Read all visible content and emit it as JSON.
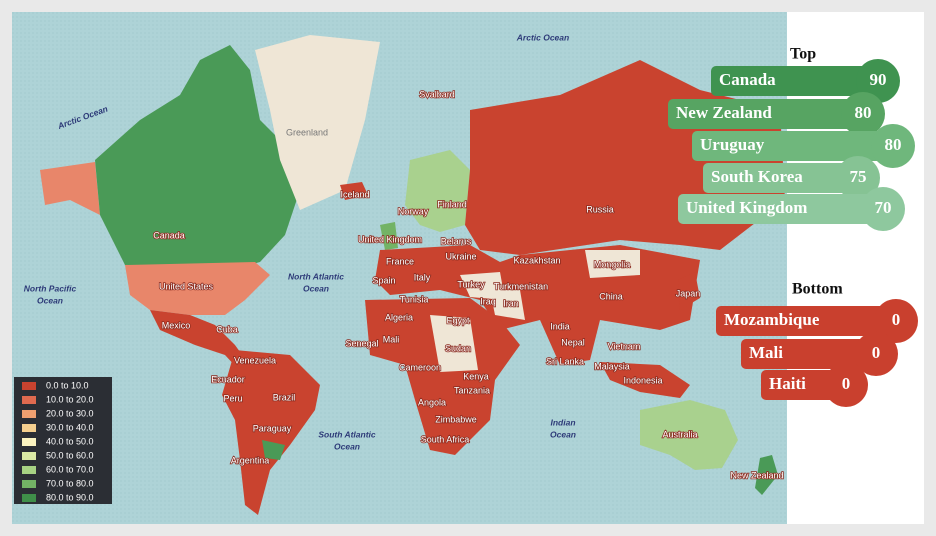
{
  "legend": {
    "items": [
      {
        "label": "0.0 to 10.0",
        "color": "#c9432f"
      },
      {
        "label": "10.0 to 20.0",
        "color": "#e06a4f"
      },
      {
        "label": "20.0 to 30.0",
        "color": "#f0a070"
      },
      {
        "label": "30.0 to 40.0",
        "color": "#f5cf8e"
      },
      {
        "label": "40.0 to 50.0",
        "color": "#fbf3c0"
      },
      {
        "label": "50.0 to 60.0",
        "color": "#dbeaa5"
      },
      {
        "label": "60.0 to 70.0",
        "color": "#a7d283"
      },
      {
        "label": "70.0 to 80.0",
        "color": "#73b365"
      },
      {
        "label": "80.0 to 90.0",
        "color": "#3f8f49"
      }
    ]
  },
  "rankings": {
    "top": {
      "title": "Top",
      "items": [
        {
          "name": "Canada",
          "value": 90,
          "color": "#3f9350"
        },
        {
          "name": "New Zealand",
          "value": 80,
          "color": "#57a462"
        },
        {
          "name": "Uruguay",
          "value": 80,
          "color": "#6fb77c"
        },
        {
          "name": "South Korea",
          "value": 75,
          "color": "#86c394"
        },
        {
          "name": "United Kingdom",
          "value": 70,
          "color": "#8ec89e"
        }
      ]
    },
    "bottom": {
      "title": "Bottom",
      "items": [
        {
          "name": "Mozambique",
          "value": 0,
          "color": "#c9402e"
        },
        {
          "name": "Mali",
          "value": 0,
          "color": "#c9402e"
        },
        {
          "name": "Haiti",
          "value": 0,
          "color": "#c9402e"
        }
      ]
    }
  },
  "map": {
    "labels": [
      "Greenland",
      "Iceland",
      "Svalbard",
      "Norway",
      "Finland",
      "United Kingdom",
      "Belarus",
      "Ukraine",
      "France",
      "Spain",
      "Italy",
      "Kazakhstan",
      "Russia",
      "Mongolia",
      "China",
      "Japan",
      "Turkmenistan",
      "Turkey",
      "Iraq",
      "Iran",
      "Tunisia",
      "Algeria",
      "Egypt",
      "Mali",
      "Senegal",
      "Sudan",
      "Cameroon",
      "Kenya",
      "Tanzania",
      "Angola",
      "Zimbabwe",
      "South Africa",
      "Nepal",
      "India",
      "Sri Lanka",
      "Vietnam",
      "Malaysia",
      "Indonesia",
      "Australia",
      "New Zealand",
      "Canada",
      "United States",
      "Mexico",
      "Cuba",
      "Venezuela",
      "Ecuador",
      "Peru",
      "Brazil",
      "Paraguay",
      "Argentina"
    ],
    "oceans": [
      [
        "Arctic Ocean"
      ],
      [
        "Arctic Ocean"
      ],
      [
        "North Pacific",
        "Ocean"
      ],
      [
        "North Atlantic",
        "Ocean"
      ],
      [
        "South Atlantic",
        "Ocean"
      ],
      [
        "Indian",
        "Ocean"
      ]
    ]
  }
}
